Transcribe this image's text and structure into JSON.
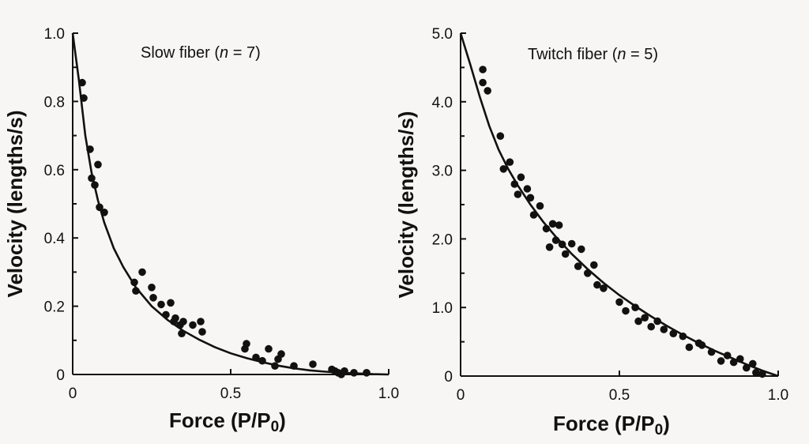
{
  "chart_data": [
    {
      "type": "scatter",
      "title_prefix": "Slow fiber (",
      "title_n": "n",
      "title_suffix": " = 7)",
      "xlabel": "Force  (P/P",
      "xlabel_sub": "0",
      "xlabel_close": ")",
      "ylabel": "Velocity  (lengths/s)",
      "xlim": [
        0,
        1.0
      ],
      "ylim": [
        0,
        1.0
      ],
      "x_ticks": [
        0,
        0.5,
        1.0
      ],
      "x_tick_labels": [
        "0",
        "0.5",
        "1.0"
      ],
      "y_ticks": [
        0,
        0.2,
        0.4,
        0.6,
        0.8,
        1.0
      ],
      "y_tick_labels": [
        "0",
        "0.2",
        "0.4",
        "0.6",
        "0.8",
        "1.0"
      ],
      "fit_curve": {
        "x": [
          0.0,
          0.02,
          0.04,
          0.06,
          0.08,
          0.1,
          0.13,
          0.16,
          0.2,
          0.25,
          0.3,
          0.35,
          0.4,
          0.45,
          0.5,
          0.55,
          0.6,
          0.65,
          0.7,
          0.75,
          0.8,
          0.85,
          0.9,
          0.95,
          1.0
        ],
        "y": [
          1.0,
          0.86,
          0.7,
          0.59,
          0.51,
          0.445,
          0.37,
          0.315,
          0.255,
          0.2,
          0.16,
          0.128,
          0.102,
          0.08,
          0.062,
          0.048,
          0.036,
          0.026,
          0.018,
          0.012,
          0.008,
          0.005,
          0.003,
          0.001,
          0.0
        ]
      },
      "points": {
        "x": [
          0.03,
          0.035,
          0.055,
          0.06,
          0.07,
          0.08,
          0.085,
          0.1,
          0.195,
          0.2,
          0.22,
          0.25,
          0.255,
          0.28,
          0.295,
          0.31,
          0.32,
          0.325,
          0.34,
          0.345,
          0.35,
          0.38,
          0.405,
          0.41,
          0.545,
          0.55,
          0.58,
          0.6,
          0.62,
          0.64,
          0.65,
          0.66,
          0.7,
          0.76,
          0.82,
          0.83,
          0.84,
          0.85,
          0.86,
          0.89,
          0.93
        ],
        "y": [
          0.855,
          0.81,
          0.66,
          0.575,
          0.555,
          0.615,
          0.49,
          0.475,
          0.27,
          0.245,
          0.3,
          0.255,
          0.225,
          0.205,
          0.175,
          0.21,
          0.155,
          0.165,
          0.145,
          0.12,
          0.155,
          0.145,
          0.155,
          0.125,
          0.075,
          0.09,
          0.05,
          0.04,
          0.075,
          0.025,
          0.045,
          0.06,
          0.025,
          0.03,
          0.015,
          0.01,
          0.005,
          0.0,
          0.01,
          0.005,
          0.005
        ]
      }
    },
    {
      "type": "scatter",
      "title_prefix": "Twitch fiber (",
      "title_n": "n",
      "title_suffix": " = 5)",
      "xlabel": "Force  (P/P",
      "xlabel_sub": "0",
      "xlabel_close": ")",
      "ylabel": "Velocity  (lengths/s)",
      "xlim": [
        0,
        1.0
      ],
      "ylim": [
        0,
        5.0
      ],
      "x_ticks": [
        0,
        0.5,
        1.0
      ],
      "x_tick_labels": [
        "0",
        "0.5",
        "1.0"
      ],
      "y_ticks": [
        0,
        1.0,
        2.0,
        3.0,
        4.0,
        5.0
      ],
      "y_tick_labels": [
        "0",
        "1.0",
        "2.0",
        "3.0",
        "4.0",
        "5.0"
      ],
      "fit_curve": {
        "x": [
          0.0,
          0.03,
          0.06,
          0.09,
          0.12,
          0.15,
          0.18,
          0.22,
          0.26,
          0.3,
          0.35,
          0.4,
          0.45,
          0.5,
          0.55,
          0.6,
          0.65,
          0.7,
          0.75,
          0.8,
          0.85,
          0.9,
          0.95,
          1.0
        ],
        "y": [
          5.0,
          4.55,
          4.08,
          3.65,
          3.3,
          3.02,
          2.78,
          2.5,
          2.25,
          2.03,
          1.78,
          1.56,
          1.36,
          1.18,
          1.02,
          0.87,
          0.73,
          0.6,
          0.48,
          0.37,
          0.27,
          0.17,
          0.08,
          0.0
        ]
      },
      "points": {
        "x": [
          0.07,
          0.07,
          0.085,
          0.125,
          0.135,
          0.155,
          0.17,
          0.18,
          0.19,
          0.21,
          0.22,
          0.23,
          0.25,
          0.27,
          0.28,
          0.29,
          0.3,
          0.31,
          0.32,
          0.33,
          0.35,
          0.37,
          0.38,
          0.4,
          0.42,
          0.43,
          0.45,
          0.5,
          0.52,
          0.55,
          0.56,
          0.58,
          0.6,
          0.62,
          0.64,
          0.67,
          0.7,
          0.72,
          0.75,
          0.76,
          0.79,
          0.82,
          0.84,
          0.86,
          0.88,
          0.9,
          0.92,
          0.93,
          0.95
        ],
        "y": [
          4.47,
          4.28,
          4.16,
          3.5,
          3.02,
          3.12,
          2.8,
          2.65,
          2.9,
          2.73,
          2.6,
          2.35,
          2.48,
          2.15,
          1.88,
          2.22,
          1.98,
          2.2,
          1.92,
          1.78,
          1.93,
          1.6,
          1.85,
          1.5,
          1.62,
          1.33,
          1.28,
          1.08,
          0.95,
          1.0,
          0.8,
          0.85,
          0.72,
          0.8,
          0.68,
          0.62,
          0.58,
          0.42,
          0.48,
          0.45,
          0.35,
          0.22,
          0.3,
          0.2,
          0.25,
          0.12,
          0.18,
          0.05,
          0.03
        ]
      }
    }
  ]
}
